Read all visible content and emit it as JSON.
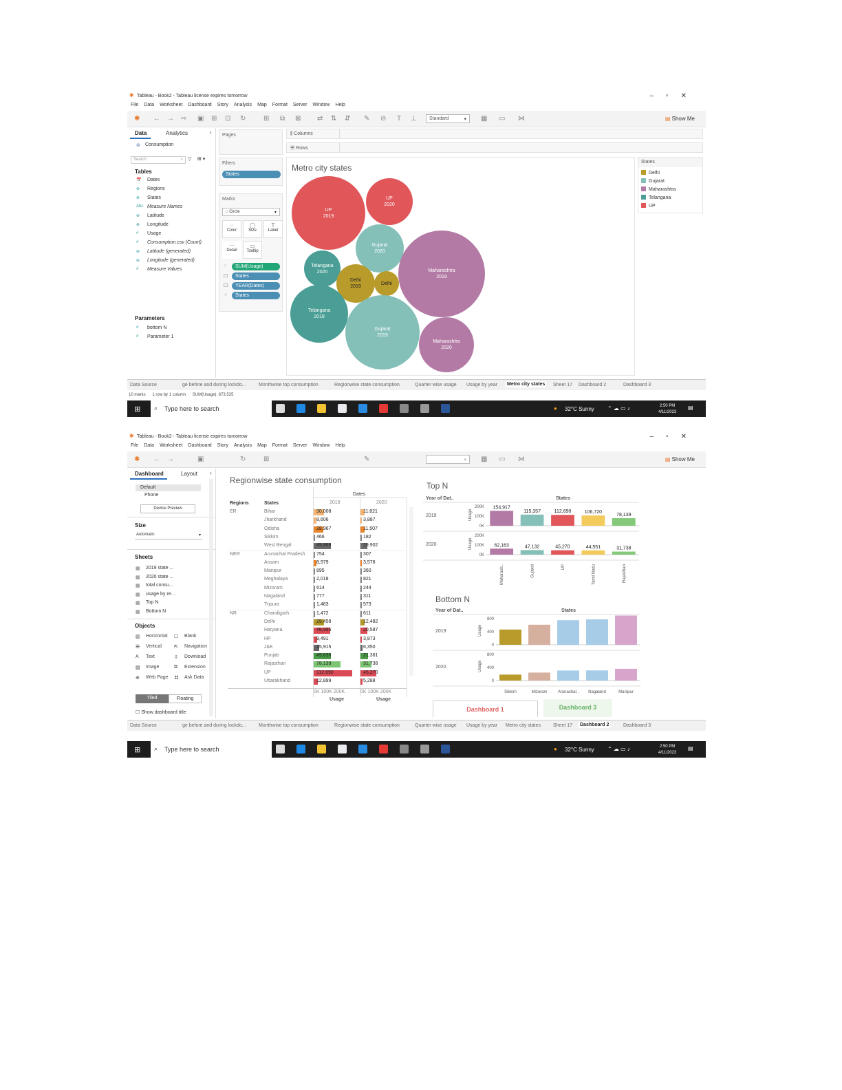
{
  "common": {
    "window_title": "Tableau - Book2 - Tableau license expires tomorrow",
    "menu": [
      "File",
      "Data",
      "Worksheet",
      "Dashboard",
      "Story",
      "Analysis",
      "Map",
      "Format",
      "Server",
      "Window",
      "Help"
    ],
    "show_me": "Show Me",
    "taskbar": {
      "search": "Type here to search",
      "weather": "32°C  Sunny",
      "time": "2:50 PM",
      "date": "4/11/2023",
      "notif": "4"
    },
    "sheet_tabs": [
      "Data Source",
      "ge before and during lockdo...",
      "Monthwise top consumption",
      "Regionwise state consumption",
      "Quarter wise usage",
      "Usage by year",
      "Metro city states",
      "Sheet 17",
      "Dashboard 2",
      "Dashboard 3"
    ]
  },
  "screen1": {
    "toolbar_select": "Standard",
    "data_tab": "Data",
    "analytics_tab": "Analytics",
    "datasource": "Consumption",
    "search_placeholder": "Search",
    "tables_header": "Tables",
    "fields": [
      "Dates",
      "Regions",
      "States",
      "Measure Names",
      "Latitude",
      "Longitude",
      "Usage",
      "Consumption.csv (Count)",
      "Latitude (generated)",
      "Longitude (generated)",
      "Measure Values"
    ],
    "parameters_header": "Parameters",
    "parameters": [
      "bottom N",
      "Parameter 1"
    ],
    "pages_label": "Pages",
    "filters_label": "Filters",
    "filter_pill": "States",
    "marks_label": "Marks",
    "mark_type": "Circle",
    "mark_buttons": [
      "Color",
      "Size",
      "Label",
      "Detail",
      "Tooltip"
    ],
    "mark_pills": [
      "SUM(Usage)",
      "States",
      "YEAR(Dates)",
      "States"
    ],
    "columns_label": "Columns",
    "rows_label": "Rows",
    "chart_title": "Metro city states",
    "legend_title": "States",
    "status": {
      "marks": "10 marks",
      "rows": "1 row by 1 column",
      "sum": "SUM(Usage): 673,535"
    },
    "active_tab": "Metro city states"
  },
  "screen2": {
    "dashboard_tab": "Dashboard",
    "layout_tab": "Layout",
    "devices": [
      "Default",
      "Phone"
    ],
    "device_preview": "Device Preview",
    "size_label": "Size",
    "size_value": "Automatic",
    "sheets_label": "Sheets",
    "sheets": [
      "2019 state ...",
      "2020 state ...",
      "total consu...",
      "usage by re...",
      "Top N",
      "Bottom N"
    ],
    "objects_label": "Objects",
    "objects": [
      "Horizontal",
      "Blank",
      "Vertical",
      "Navigation",
      "Text",
      "Download",
      "Image",
      "Extension",
      "Web Page",
      "Ask Data"
    ],
    "tiled": "Tiled",
    "floating": "Floating",
    "show_title": "Show dashboard title",
    "region_title": "Regionwise state consumption",
    "region_headers": {
      "regions": "Regions",
      "states": "States",
      "dates": "Dates",
      "y2019": "2019",
      "y2020": "2020",
      "usage": "Usage",
      "axis": "0K 100K  200K"
    },
    "region_rows": [
      {
        "region": "ER",
        "state": "Bihar",
        "v2019": "30,008",
        "v2020": "11,821",
        "n19": 30008,
        "n20": 11821,
        "c19": "#f3b474",
        "c20": "#f3b474"
      },
      {
        "region": "",
        "state": "Jharkhand",
        "v2019": "8,606",
        "v2020": "3,887",
        "n19": 8606,
        "n20": 3887,
        "c19": "#f3b474",
        "c20": "#f3b474"
      },
      {
        "region": "",
        "state": "Odisha",
        "v2019": "28,967",
        "v2020": "11,507",
        "n19": 28967,
        "n20": 11507,
        "c19": "#e8842a",
        "c20": "#e8842a"
      },
      {
        "region": "",
        "state": "Sikkim",
        "v2019": "466",
        "v2020": "182",
        "n19": 466,
        "n20": 182,
        "c19": "#888",
        "c20": "#888"
      },
      {
        "region": "",
        "state": "West Bengal",
        "v2019": "49,869",
        "v2020": "19,902",
        "n19": 49869,
        "n20": 19902,
        "c19": "#6b6b6b",
        "c20": "#6b6b6b"
      },
      {
        "region": "NER",
        "state": "Arunachal Pradesh",
        "v2019": "754",
        "v2020": "307",
        "n19": 754,
        "n20": 307,
        "c19": "#888",
        "c20": "#888"
      },
      {
        "region": "",
        "state": "Assam",
        "v2019": "8,979",
        "v2020": "3,576",
        "n19": 8979,
        "n20": 3576,
        "c19": "#e8842a",
        "c20": "#e8842a"
      },
      {
        "region": "",
        "state": "Manipur",
        "v2019": "895",
        "v2020": "360",
        "n19": 895,
        "n20": 360,
        "c19": "#888",
        "c20": "#888"
      },
      {
        "region": "",
        "state": "Meghalaya",
        "v2019": "2,018",
        "v2020": "821",
        "n19": 2018,
        "n20": 821,
        "c19": "#888",
        "c20": "#888"
      },
      {
        "region": "",
        "state": "Mizoram",
        "v2019": "614",
        "v2020": "244",
        "n19": 614,
        "n20": 244,
        "c19": "#888",
        "c20": "#888"
      },
      {
        "region": "",
        "state": "Nagaland",
        "v2019": "777",
        "v2020": "311",
        "n19": 777,
        "n20": 311,
        "c19": "#888",
        "c20": "#888"
      },
      {
        "region": "",
        "state": "Tripura",
        "v2019": "1,483",
        "v2020": "573",
        "n19": 1483,
        "n20": 573,
        "c19": "#888",
        "c20": "#888"
      },
      {
        "region": "NR",
        "state": "Chandigarh",
        "v2019": "1,472",
        "v2020": "611",
        "n19": 1472,
        "n20": 611,
        "c19": "#888",
        "c20": "#888"
      },
      {
        "region": "",
        "state": "Delhi",
        "v2019": "29,458",
        "v2020": "12,482",
        "n19": 29458,
        "n20": 12482,
        "c19": "#b39a2a",
        "c20": "#b39a2a"
      },
      {
        "region": "",
        "state": "Haryana",
        "v2019": "48,995",
        "v2020": "20,587",
        "n19": 48995,
        "n20": 20587,
        "c19": "#d94a55",
        "c20": "#d94a55"
      },
      {
        "region": "",
        "state": "HP",
        "v2019": "9,491",
        "v2020": "3,873",
        "n19": 9491,
        "n20": 3873,
        "c19": "#d94a55",
        "c20": "#d94a55"
      },
      {
        "region": "",
        "state": "J&K",
        "v2019": "15,915",
        "v2020": "6,350",
        "n19": 15915,
        "n20": 6350,
        "c19": "#666",
        "c20": "#666"
      },
      {
        "region": "",
        "state": "Punjab",
        "v2019": "49,636",
        "v2020": "21,361",
        "n19": 49636,
        "n20": 21361,
        "c19": "#4a9a48",
        "c20": "#4a9a48"
      },
      {
        "region": "",
        "state": "Rajasthan",
        "v2019": "78,139",
        "v2020": "31,738",
        "n19": 78139,
        "n20": 31738,
        "c19": "#7bc472",
        "c20": "#7bc472"
      },
      {
        "region": "",
        "state": "UP",
        "v2019": "112,690",
        "v2020": "45,270",
        "n19": 112690,
        "n20": 45270,
        "c19": "#d94a55",
        "c20": "#d94a55"
      },
      {
        "region": "",
        "state": "Uttarakhand",
        "v2019": "12,899",
        "v2020": "5,288",
        "n19": 12899,
        "n20": 5288,
        "c19": "#d94a55",
        "c20": "#d94a55"
      }
    ],
    "topn_title": "Top N",
    "topn_year_label": "Year of Dat..",
    "states_label": "States",
    "usage_label": "Usage",
    "bottomn_title": "Bottom N",
    "bottomn_year_label": "Year of Dat..",
    "dashboard1": "Dashboard 1",
    "dashboard3": "Dashboard 3",
    "active_tab": "Dashboard 2"
  },
  "chart_data": [
    {
      "type": "scatter",
      "title": "Metro city states",
      "legend": [
        "Delhi",
        "Gujarat",
        "Maharashtra",
        "Telangana",
        "UP"
      ],
      "colors": {
        "Delhi": "#b89b2a",
        "Gujarat": "#85c0b8",
        "Maharashtra": "#b37aa5",
        "Telangana": "#4a9e95",
        "UP": "#e05659"
      },
      "points": [
        {
          "state": "UP",
          "year": "2019"
        },
        {
          "state": "UP",
          "year": "2020"
        },
        {
          "state": "Gujarat",
          "year": "2020"
        },
        {
          "state": "Telangana",
          "year": "2020"
        },
        {
          "state": "Delhi",
          "year": "2019"
        },
        {
          "state": "Delhi",
          "year": ""
        },
        {
          "state": "Maharashtra",
          "year": "2019"
        },
        {
          "state": "Telangana",
          "year": "2019"
        },
        {
          "state": "Gujarat",
          "year": "2019"
        },
        {
          "state": "Maharashtra",
          "year": "2020"
        }
      ]
    },
    {
      "type": "bar",
      "title": "Top N",
      "categories": [
        "Maharash..",
        "Gujarat",
        "UP",
        "Tamil Nadu",
        "Rajasthan"
      ],
      "series": [
        {
          "name": "2019",
          "values": [
            154917,
            115357,
            112690,
            106720,
            78139
          ]
        },
        {
          "name": "2020",
          "values": [
            62163,
            47132,
            45270,
            44551,
            31738
          ]
        }
      ],
      "colors": [
        "#b37aa5",
        "#85c0b8",
        "#e05659",
        "#f2cb5c",
        "#84c97a"
      ],
      "yticks": [
        "0K",
        "100K",
        "200K"
      ],
      "ylim": [
        0,
        200000
      ]
    },
    {
      "type": "bar",
      "title": "Bottom N",
      "categories": [
        "Sikkim",
        "Mizoram",
        "Arunachal..",
        "Nagaland",
        "Manipur"
      ],
      "series": [
        {
          "name": "2019",
          "values": [
            466,
            614,
            754,
            777,
            895
          ]
        },
        {
          "name": "2020",
          "values": [
            182,
            244,
            307,
            311,
            360
          ]
        }
      ],
      "colors": [
        "#b89b2a",
        "#d6b09e",
        "#a6cce8",
        "#a6cce8",
        "#d7a5cc"
      ],
      "yticks": [
        "0",
        "400",
        "800"
      ],
      "ylim": [
        0,
        800
      ]
    }
  ]
}
